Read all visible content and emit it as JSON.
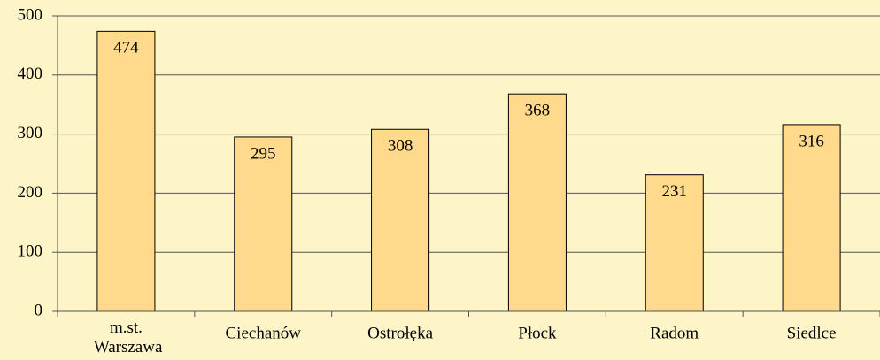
{
  "chart_data": {
    "type": "bar",
    "categories": [
      "m.st. Warszawa",
      "Ciechanów",
      "Ostrołęka",
      "Płock",
      "Radom",
      "Siedlce"
    ],
    "values": [
      474,
      295,
      308,
      368,
      231,
      316
    ],
    "color": "#ffd98c",
    "ylim": [
      0,
      500
    ],
    "yticks": [
      0,
      100,
      200,
      300,
      400,
      500
    ],
    "grid": true
  }
}
